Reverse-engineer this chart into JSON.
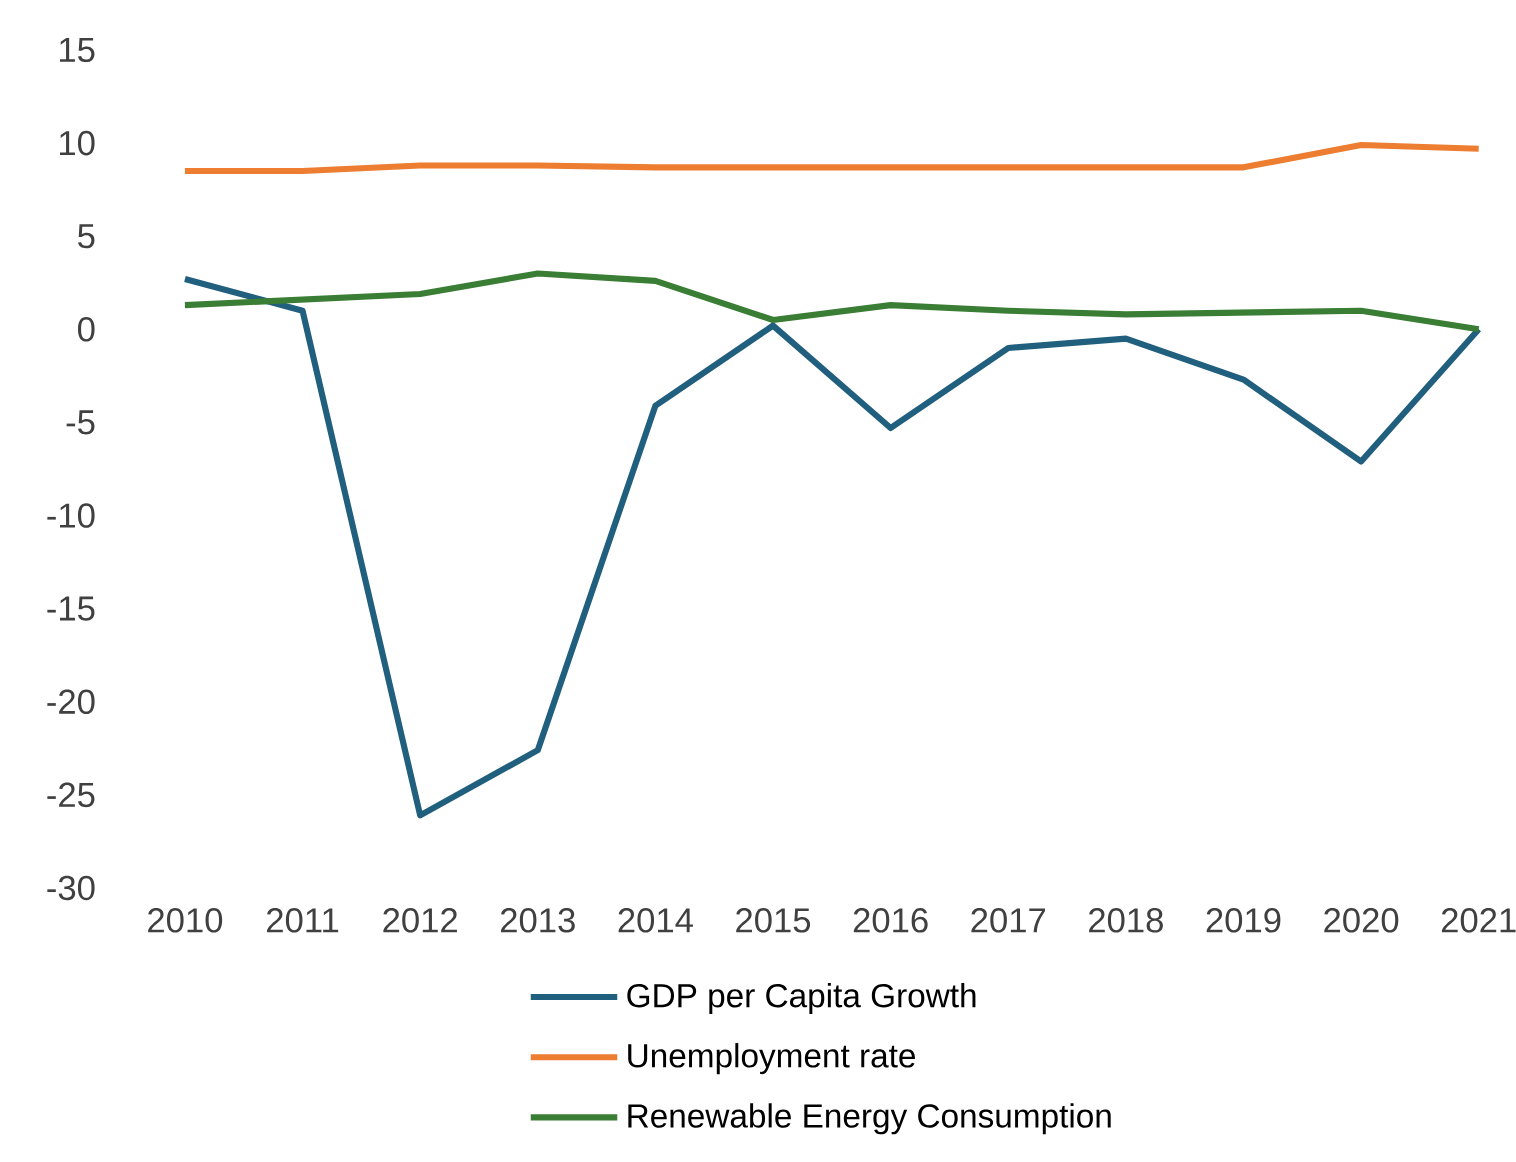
{
  "chart_data": {
    "type": "line",
    "categories": [
      "2010",
      "2011",
      "2012",
      "2013",
      "2014",
      "2015",
      "2016",
      "2017",
      "2018",
      "2019",
      "2020",
      "2021"
    ],
    "series": [
      {
        "name": "GDP per Capita Growth",
        "color": "#215f7e",
        "values": [
          2.7,
          1.0,
          -26.1,
          -22.6,
          -4.1,
          0.2,
          -5.3,
          -1.0,
          -0.5,
          -2.7,
          -7.1,
          0
        ]
      },
      {
        "name": "Unemployment rate",
        "color": "#ed7d31",
        "values": [
          8.5,
          8.5,
          8.8,
          8.8,
          8.7,
          8.7,
          8.7,
          8.7,
          8.7,
          8.7,
          9.9,
          9.7
        ]
      },
      {
        "name": "Renewable Energy Consumption",
        "color": "#3a7d35",
        "values": [
          1.3,
          1.6,
          1.9,
          3.0,
          2.6,
          0.5,
          1.3,
          1.0,
          0.8,
          0.9,
          1.0,
          0
        ]
      }
    ],
    "ylim": [
      -30,
      15
    ],
    "yticks": [
      -30,
      -25,
      -20,
      -15,
      -10,
      -5,
      0,
      5,
      10,
      15
    ],
    "legend": "bottom",
    "marker": "none",
    "line_style": "solid",
    "grid": false
  }
}
